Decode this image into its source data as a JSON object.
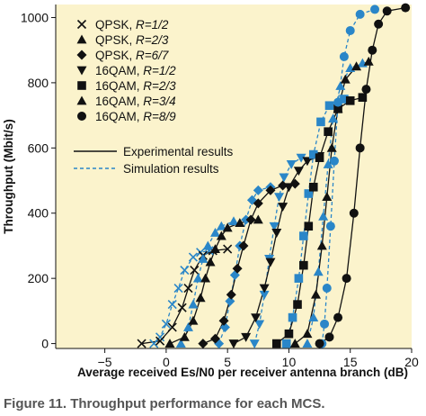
{
  "caption": "Figure 11. Throughput performance for each MCS.",
  "chart_data": {
    "type": "line",
    "xlabel": "Average received Es/N0 per receiver antenna branch (dB)",
    "ylabel": "Throughput (Mbit/s)",
    "xlim": [
      -9,
      20
    ],
    "ylim": [
      -15,
      1040
    ],
    "xticks": [
      -5,
      0,
      5,
      10,
      15,
      20
    ],
    "yticks": [
      0,
      200,
      400,
      600,
      800,
      1000
    ],
    "grid": false,
    "legend": "upper-left",
    "colors": {
      "experimental": "#111111",
      "simulation": "#2a86c8",
      "background": "#fbf3cc"
    },
    "line_legend": [
      {
        "name": "Experimental results",
        "style": "solid"
      },
      {
        "name": "Simulation results",
        "style": "dashed"
      }
    ],
    "series": [
      {
        "name": "QPSK, R=1/2",
        "scheme": "QPSK, ",
        "rate": "R=1/2",
        "marker": "x",
        "experimental": [
          [
            -2.0,
            0
          ],
          [
            -0.5,
            8
          ],
          [
            0.5,
            50
          ],
          [
            1.3,
            110
          ],
          [
            1.8,
            170
          ],
          [
            2.3,
            225
          ],
          [
            3.0,
            270
          ],
          [
            3.8,
            285
          ],
          [
            5.0,
            290
          ]
        ],
        "simulation": [
          [
            -1.0,
            0
          ],
          [
            -0.5,
            20
          ],
          [
            0,
            60
          ],
          [
            0.5,
            120
          ],
          [
            1.0,
            170
          ],
          [
            1.5,
            225
          ],
          [
            2.2,
            265
          ],
          [
            2.8,
            280
          ],
          [
            3.5,
            285
          ]
        ]
      },
      {
        "name": "QPSK, R=2/3",
        "scheme": "QPSK, ",
        "rate": "R=2/3",
        "marker": "triangle-up",
        "experimental": [
          [
            0.3,
            0
          ],
          [
            1.5,
            20
          ],
          [
            2.2,
            70
          ],
          [
            2.8,
            140
          ],
          [
            3.2,
            200
          ],
          [
            3.6,
            250
          ],
          [
            4.0,
            290
          ],
          [
            4.5,
            330
          ],
          [
            5.0,
            355
          ],
          [
            6.0,
            370
          ],
          [
            7.5,
            380
          ]
        ],
        "simulation": [
          [
            1.2,
            0
          ],
          [
            1.8,
            50
          ],
          [
            2.2,
            120
          ],
          [
            2.6,
            200
          ],
          [
            3.0,
            260
          ],
          [
            3.4,
            300
          ],
          [
            4.0,
            340
          ],
          [
            4.5,
            360
          ],
          [
            5.5,
            375
          ]
        ]
      },
      {
        "name": "QPSK, R=6/7",
        "scheme": "QPSK, ",
        "rate": "R=6/7",
        "marker": "diamond",
        "experimental": [
          [
            3.0,
            0
          ],
          [
            4.0,
            15
          ],
          [
            4.7,
            70
          ],
          [
            5.3,
            150
          ],
          [
            5.8,
            230
          ],
          [
            6.3,
            300
          ],
          [
            6.9,
            380
          ],
          [
            7.5,
            430
          ],
          [
            8.5,
            470
          ],
          [
            9.5,
            485
          ],
          [
            10.5,
            490
          ]
        ],
        "simulation": [
          [
            4.3,
            0
          ],
          [
            4.8,
            50
          ],
          [
            5.2,
            130
          ],
          [
            5.6,
            210
          ],
          [
            6.0,
            300
          ],
          [
            6.5,
            380
          ],
          [
            7.0,
            440
          ],
          [
            7.5,
            470
          ],
          [
            8.5,
            480
          ]
        ]
      },
      {
        "name": "16QAM, R=1/2",
        "scheme": "16QAM, ",
        "rate": "R=1/2",
        "marker": "triangle-down",
        "experimental": [
          [
            5.5,
            0
          ],
          [
            6.5,
            20
          ],
          [
            7.3,
            80
          ],
          [
            8.0,
            170
          ],
          [
            8.5,
            250
          ],
          [
            9.0,
            340
          ],
          [
            9.5,
            420
          ],
          [
            10.0,
            480
          ],
          [
            10.8,
            530
          ],
          [
            11.5,
            560
          ],
          [
            12.5,
            575
          ]
        ],
        "simulation": [
          [
            7.2,
            0
          ],
          [
            7.6,
            60
          ],
          [
            8.0,
            150
          ],
          [
            8.4,
            260
          ],
          [
            8.8,
            360
          ],
          [
            9.2,
            450
          ],
          [
            9.6,
            510
          ],
          [
            10.2,
            550
          ],
          [
            11.0,
            570
          ]
        ]
      },
      {
        "name": "16QAM, R=2/3",
        "scheme": "16QAM, ",
        "rate": "R=2/3",
        "marker": "square",
        "experimental": [
          [
            9.0,
            0
          ],
          [
            10.0,
            30
          ],
          [
            10.7,
            120
          ],
          [
            11.2,
            240
          ],
          [
            11.6,
            360
          ],
          [
            12.0,
            480
          ],
          [
            12.5,
            570
          ],
          [
            13.2,
            650
          ],
          [
            14.0,
            720
          ],
          [
            15.0,
            745
          ],
          [
            16.0,
            755
          ]
        ],
        "simulation": [
          [
            9.8,
            0
          ],
          [
            10.3,
            80
          ],
          [
            10.8,
            200
          ],
          [
            11.2,
            330
          ],
          [
            11.6,
            460
          ],
          [
            12.0,
            580
          ],
          [
            12.6,
            680
          ],
          [
            13.3,
            730
          ],
          [
            14.5,
            750
          ]
        ]
      },
      {
        "name": "16QAM, R=3/4",
        "scheme": "16QAM, ",
        "rate": "R=3/4",
        "marker": "triangle-up",
        "experimental": [
          [
            10.5,
            0
          ],
          [
            11.5,
            30
          ],
          [
            12.2,
            150
          ],
          [
            12.7,
            300
          ],
          [
            13.1,
            450
          ],
          [
            13.5,
            600
          ],
          [
            14.0,
            720
          ],
          [
            14.6,
            810
          ],
          [
            15.5,
            850
          ],
          [
            16.5,
            865
          ]
        ],
        "simulation": [
          [
            11.5,
            0
          ],
          [
            12.0,
            80
          ],
          [
            12.4,
            220
          ],
          [
            12.8,
            390
          ],
          [
            13.2,
            550
          ],
          [
            13.6,
            690
          ],
          [
            14.2,
            790
          ],
          [
            15.0,
            845
          ],
          [
            16.0,
            860
          ]
        ]
      },
      {
        "name": "16QAM, R=8/9",
        "scheme": "16QAM, ",
        "rate": "R=8/9",
        "marker": "circle",
        "experimental": [
          [
            12.5,
            0
          ],
          [
            13.3,
            20
          ],
          [
            14.0,
            80
          ],
          [
            14.7,
            200
          ],
          [
            15.3,
            400
          ],
          [
            15.8,
            600
          ],
          [
            16.3,
            780
          ],
          [
            16.8,
            900
          ],
          [
            17.3,
            980
          ],
          [
            18.0,
            1020
          ],
          [
            19.5,
            1030
          ]
        ],
        "simulation": [
          [
            12.7,
            0
          ],
          [
            12.9,
            60
          ],
          [
            13.1,
            170
          ],
          [
            13.4,
            360
          ],
          [
            13.7,
            560
          ],
          [
            14.0,
            740
          ],
          [
            14.5,
            880
          ],
          [
            15.0,
            960
          ],
          [
            15.8,
            1010
          ],
          [
            17.0,
            1025
          ]
        ]
      }
    ]
  }
}
